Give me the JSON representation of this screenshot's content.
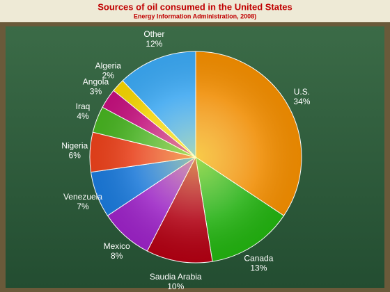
{
  "chart_data": {
    "type": "pie",
    "title": "Sources of oil consumed in the United States",
    "subtitle": "Energy Information Administration, 2008)",
    "categories": [
      "U.S.",
      "Canada",
      "Saudia Arabia",
      "Mexico",
      "Venezuela",
      "Nigeria",
      "Iraq",
      "Angola",
      "Algeria",
      "Other"
    ],
    "values": [
      34,
      13,
      10,
      8,
      7,
      6,
      4,
      3,
      2,
      12
    ],
    "value_labels": [
      "34%",
      "13%",
      "10%",
      "8%",
      "7%",
      "6%",
      "4%",
      "3%",
      "2%",
      "12%"
    ],
    "colors": [
      "#f08c00",
      "#22b010",
      "#b00012",
      "#9a22c4",
      "#1a78d8",
      "#e8401a",
      "#46b020",
      "#c2107c",
      "#f2d200",
      "#3aa6f0"
    ]
  }
}
